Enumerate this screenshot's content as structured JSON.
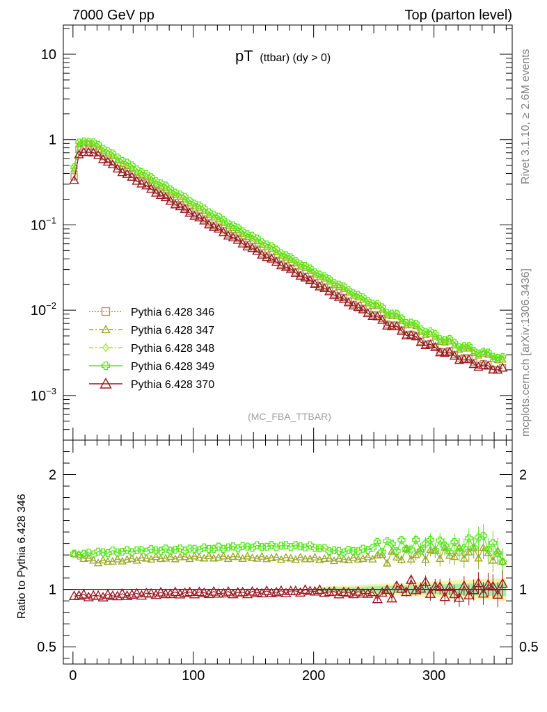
{
  "header": {
    "left": "7000 GeV pp",
    "right": "Top (parton level)"
  },
  "plot_title": {
    "main": "pT",
    "sub": "(ttbar) (dy > 0)"
  },
  "side_labels": {
    "rivet": "Rivet 3.1.10, ≥ 2.6M events",
    "mcplots": "mcplots.cern.ch [arXiv:1306.3436]"
  },
  "analysis_label": "(MC_FBA_TTBAR)",
  "ratio_ylabel": "Ratio to Pythia 6.428 346",
  "chart_data": [
    {
      "type": "line",
      "title": "pT (ttbar) (dy > 0)",
      "xlabel": "",
      "ylabel": "",
      "yscale": "log",
      "xlim": [
        -8,
        365
      ],
      "ylim": [
        0.0003,
        22
      ],
      "x_ticks": [
        0,
        100,
        200,
        300
      ],
      "y_ticks": [
        {
          "value": 0.001,
          "base": "10",
          "exp": "−3"
        },
        {
          "value": 0.01,
          "base": "10",
          "exp": "−2"
        },
        {
          "value": 0.1,
          "base": "10",
          "exp": "−1"
        },
        {
          "value": 1,
          "base": "1",
          "exp": ""
        },
        {
          "value": 10,
          "base": "10",
          "exp": ""
        }
      ],
      "legend_position": "bottom-left",
      "series": [
        {
          "name": "Pythia 6.428 346",
          "color": "#b5875a",
          "marker": "square",
          "line": "dotted",
          "points": [
            [
              1,
              0.36
            ],
            [
              5,
              0.75
            ],
            [
              10,
              0.8
            ],
            [
              20,
              0.72
            ],
            [
              40,
              0.46
            ],
            [
              60,
              0.31
            ],
            [
              80,
              0.205
            ],
            [
              100,
              0.138
            ],
            [
              120,
              0.094
            ],
            [
              140,
              0.065
            ],
            [
              160,
              0.045
            ],
            [
              180,
              0.031
            ],
            [
              200,
              0.0215
            ],
            [
              220,
              0.015
            ],
            [
              240,
              0.0105
            ],
            [
              260,
              0.0074
            ],
            [
              280,
              0.0052
            ],
            [
              300,
              0.0037
            ],
            [
              320,
              0.0029
            ],
            [
              340,
              0.0023
            ],
            [
              350,
              0.0021
            ],
            [
              357,
              0.002
            ]
          ]
        },
        {
          "name": "Pythia 6.428 347",
          "color": "#9aa82a",
          "marker": "triangle",
          "line": "dashdot",
          "points": [
            [
              1,
              0.44
            ],
            [
              5,
              0.87
            ],
            [
              10,
              0.94
            ],
            [
              20,
              0.84
            ],
            [
              40,
              0.54
            ],
            [
              60,
              0.37
            ],
            [
              80,
              0.25
            ],
            [
              100,
              0.17
            ],
            [
              120,
              0.116
            ],
            [
              140,
              0.08
            ],
            [
              160,
              0.056
            ],
            [
              180,
              0.039
            ],
            [
              200,
              0.027
            ],
            [
              220,
              0.019
            ],
            [
              240,
              0.0133
            ],
            [
              260,
              0.0094
            ],
            [
              280,
              0.0067
            ],
            [
              300,
              0.0048
            ],
            [
              320,
              0.0037
            ],
            [
              340,
              0.003
            ],
            [
              350,
              0.0028
            ],
            [
              357,
              0.0025
            ]
          ]
        },
        {
          "name": "Pythia 6.428 348",
          "color": "#a8e22a",
          "marker": "diamond",
          "line": "dashdot",
          "points": [
            [
              1,
              0.45
            ],
            [
              5,
              0.88
            ],
            [
              10,
              0.95
            ],
            [
              20,
              0.85
            ],
            [
              40,
              0.55
            ],
            [
              60,
              0.375
            ],
            [
              80,
              0.255
            ],
            [
              100,
              0.173
            ],
            [
              120,
              0.118
            ],
            [
              140,
              0.082
            ],
            [
              160,
              0.057
            ],
            [
              180,
              0.04
            ],
            [
              200,
              0.0277
            ],
            [
              220,
              0.0195
            ],
            [
              240,
              0.0136
            ],
            [
              260,
              0.0096
            ],
            [
              280,
              0.0068
            ],
            [
              300,
              0.0049
            ],
            [
              320,
              0.0038
            ],
            [
              340,
              0.0031
            ],
            [
              350,
              0.0029
            ],
            [
              357,
              0.0026
            ]
          ]
        },
        {
          "name": "Pythia 6.428 349",
          "color": "#55e61a",
          "marker": "cross",
          "line": "solid",
          "points": [
            [
              1,
              0.47
            ],
            [
              5,
              0.92
            ],
            [
              10,
              0.99
            ],
            [
              20,
              0.89
            ],
            [
              40,
              0.59
            ],
            [
              60,
              0.4
            ],
            [
              80,
              0.27
            ],
            [
              100,
              0.185
            ],
            [
              120,
              0.126
            ],
            [
              140,
              0.087
            ],
            [
              160,
              0.061
            ],
            [
              180,
              0.042
            ],
            [
              200,
              0.029
            ],
            [
              220,
              0.0205
            ],
            [
              240,
              0.0143
            ],
            [
              260,
              0.0101
            ],
            [
              280,
              0.0072
            ],
            [
              300,
              0.0052
            ],
            [
              320,
              0.004
            ],
            [
              340,
              0.0032
            ],
            [
              350,
              0.003
            ],
            [
              357,
              0.0027
            ]
          ]
        },
        {
          "name": "Pythia 6.428 370",
          "color": "#9b1722",
          "marker": "triangle-open",
          "line": "solid",
          "points": [
            [
              1,
              0.33
            ],
            [
              5,
              0.66
            ],
            [
              10,
              0.74
            ],
            [
              20,
              0.67
            ],
            [
              40,
              0.43
            ],
            [
              60,
              0.29
            ],
            [
              80,
              0.195
            ],
            [
              100,
              0.132
            ],
            [
              120,
              0.09
            ],
            [
              140,
              0.062
            ],
            [
              160,
              0.043
            ],
            [
              180,
              0.0302
            ],
            [
              200,
              0.021
            ],
            [
              220,
              0.0145
            ],
            [
              240,
              0.0102
            ],
            [
              260,
              0.0071
            ],
            [
              280,
              0.0051
            ],
            [
              300,
              0.0036
            ],
            [
              320,
              0.0028
            ],
            [
              340,
              0.0022
            ],
            [
              350,
              0.0021
            ],
            [
              357,
              0.002
            ]
          ]
        }
      ]
    },
    {
      "type": "line",
      "title": "",
      "xlabel": "",
      "ylabel": "Ratio to Pythia 6.428 346",
      "xlim": [
        -8,
        365
      ],
      "ylim": [
        0.35,
        2.3
      ],
      "x_ticks": [
        0,
        100,
        200,
        300
      ],
      "y_ticks": [
        0.5,
        1,
        2
      ],
      "reference_line": 1,
      "series": [
        {
          "name": "Pythia 6.428 347",
          "color": "#9aa82a",
          "values": [
            [
              1,
              1.31
            ],
            [
              20,
              1.24
            ],
            [
              60,
              1.27
            ],
            [
              100,
              1.28
            ],
            [
              140,
              1.28
            ],
            [
              180,
              1.27
            ],
            [
              200,
              1.27
            ],
            [
              220,
              1.26
            ],
            [
              240,
              1.27
            ],
            [
              260,
              1.28
            ],
            [
              280,
              1.3
            ],
            [
              300,
              1.32
            ],
            [
              320,
              1.31
            ],
            [
              340,
              1.33
            ],
            [
              357,
              1.27
            ]
          ]
        },
        {
          "name": "Pythia 6.428 349",
          "color": "#55e61a",
          "values": [
            [
              1,
              1.3
            ],
            [
              20,
              1.32
            ],
            [
              60,
              1.34
            ],
            [
              100,
              1.35
            ],
            [
              140,
              1.37
            ],
            [
              180,
              1.38
            ],
            [
              200,
              1.37
            ],
            [
              220,
              1.33
            ],
            [
              240,
              1.34
            ],
            [
              260,
              1.39
            ],
            [
              280,
              1.37
            ],
            [
              300,
              1.4
            ],
            [
              320,
              1.35
            ],
            [
              340,
              1.45
            ],
            [
              357,
              1.28
            ]
          ]
        },
        {
          "name": "Pythia 6.428 370",
          "color": "#9b1722",
          "values": [
            [
              1,
              0.95
            ],
            [
              20,
              0.94
            ],
            [
              60,
              0.96
            ],
            [
              100,
              0.97
            ],
            [
              140,
              0.97
            ],
            [
              180,
              0.98
            ],
            [
              200,
              0.99
            ],
            [
              220,
              0.97
            ],
            [
              240,
              0.97
            ],
            [
              260,
              0.96
            ],
            [
              280,
              1.03
            ],
            [
              300,
              1.01
            ],
            [
              320,
              0.96
            ],
            [
              340,
              1.02
            ],
            [
              357,
              1.0
            ]
          ]
        }
      ]
    }
  ]
}
